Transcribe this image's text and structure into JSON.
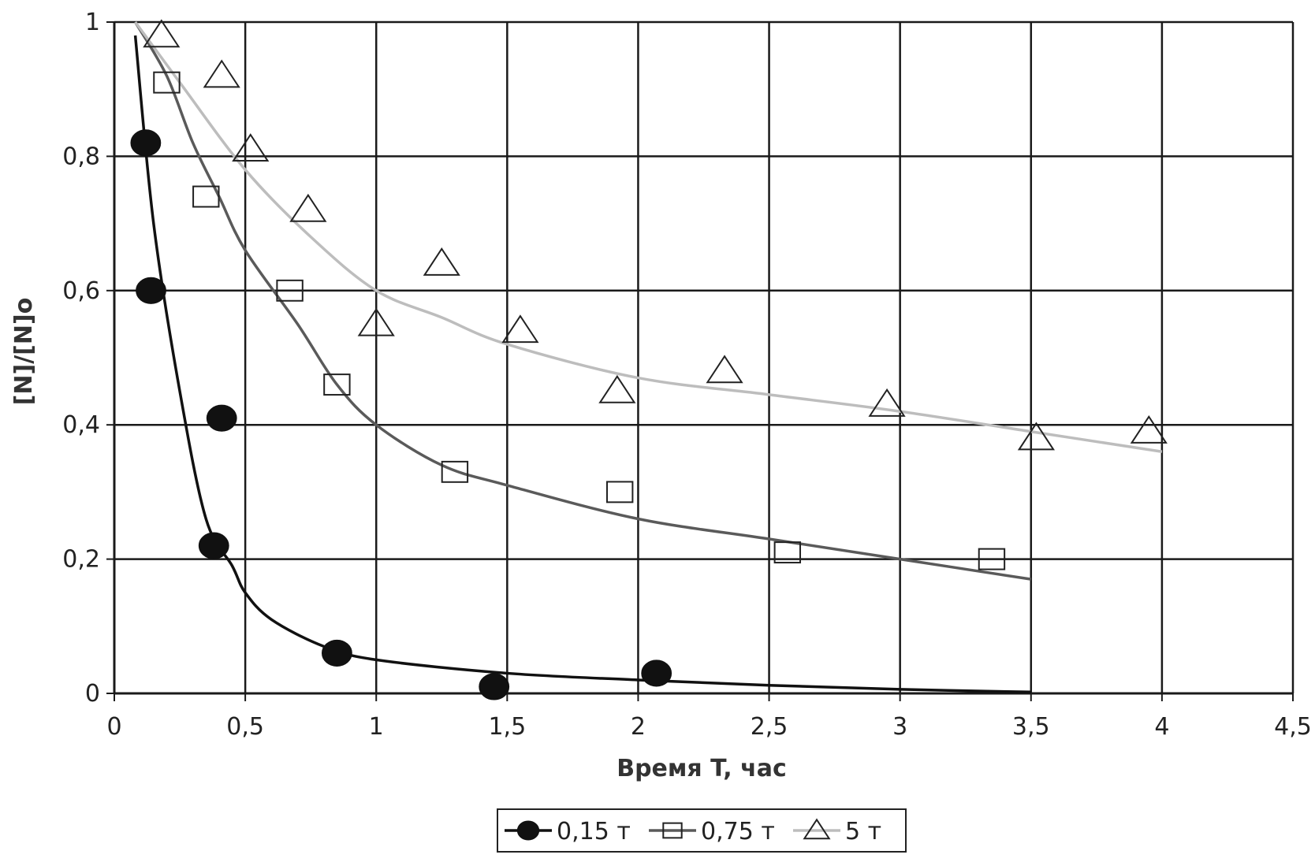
{
  "chart_data": {
    "type": "scatter",
    "xlabel": "Время T, час",
    "ylabel": "[N]/[N]o",
    "xlim": [
      0,
      4.5
    ],
    "ylim": [
      0,
      1
    ],
    "x_ticks": [
      "0",
      "0,5",
      "1",
      "1,5",
      "2",
      "2,5",
      "3",
      "3,5",
      "4",
      "4,5"
    ],
    "y_ticks": [
      "0",
      "0,2",
      "0,4",
      "0,6",
      "0,8",
      "1"
    ],
    "grid": true,
    "legend_position": "bottom",
    "series": [
      {
        "name": "0,15 т",
        "marker": "filled-circle",
        "color": "#111111",
        "points": [
          [
            0.12,
            0.82
          ],
          [
            0.14,
            0.6
          ],
          [
            0.41,
            0.41
          ],
          [
            0.38,
            0.22
          ],
          [
            0.85,
            0.06
          ],
          [
            1.45,
            0.01
          ],
          [
            2.07,
            0.03
          ]
        ],
        "trend": [
          [
            0.08,
            0.98
          ],
          [
            0.15,
            0.7
          ],
          [
            0.25,
            0.45
          ],
          [
            0.35,
            0.26
          ],
          [
            0.45,
            0.19
          ],
          [
            0.5,
            0.15
          ],
          [
            0.6,
            0.11
          ],
          [
            0.8,
            0.07
          ],
          [
            1.0,
            0.05
          ],
          [
            1.5,
            0.03
          ],
          [
            2.0,
            0.02
          ],
          [
            2.5,
            0.012
          ],
          [
            3.0,
            0.006
          ],
          [
            3.5,
            0.002
          ]
        ]
      },
      {
        "name": "0,75 т",
        "marker": "open-square",
        "color": "#555555",
        "points": [
          [
            0.2,
            0.91
          ],
          [
            0.35,
            0.74
          ],
          [
            0.67,
            0.6
          ],
          [
            0.85,
            0.46
          ],
          [
            1.3,
            0.33
          ],
          [
            1.93,
            0.3
          ],
          [
            2.57,
            0.21
          ],
          [
            3.35,
            0.2
          ]
        ],
        "trend": [
          [
            0.08,
            1.0
          ],
          [
            0.2,
            0.92
          ],
          [
            0.3,
            0.82
          ],
          [
            0.4,
            0.74
          ],
          [
            0.5,
            0.66
          ],
          [
            0.7,
            0.55
          ],
          [
            0.85,
            0.46
          ],
          [
            1.0,
            0.4
          ],
          [
            1.25,
            0.34
          ],
          [
            1.5,
            0.31
          ],
          [
            2.0,
            0.26
          ],
          [
            2.5,
            0.23
          ],
          [
            3.0,
            0.2
          ],
          [
            3.5,
            0.17
          ]
        ]
      },
      {
        "name": "5 т",
        "marker": "open-triangle",
        "color": "#b0b0b0",
        "points": [
          [
            0.18,
            0.98
          ],
          [
            0.41,
            0.92
          ],
          [
            0.52,
            0.81
          ],
          [
            0.74,
            0.72
          ],
          [
            1.0,
            0.55
          ],
          [
            1.25,
            0.64
          ],
          [
            1.55,
            0.54
          ],
          [
            1.92,
            0.45
          ],
          [
            2.33,
            0.48
          ],
          [
            2.95,
            0.43
          ],
          [
            3.52,
            0.38
          ],
          [
            3.95,
            0.39
          ]
        ],
        "trend": [
          [
            0.08,
            1.0
          ],
          [
            0.25,
            0.91
          ],
          [
            0.5,
            0.78
          ],
          [
            0.75,
            0.68
          ],
          [
            1.0,
            0.6
          ],
          [
            1.25,
            0.56
          ],
          [
            1.5,
            0.52
          ],
          [
            2.0,
            0.47
          ],
          [
            2.5,
            0.445
          ],
          [
            3.0,
            0.42
          ],
          [
            3.5,
            0.39
          ],
          [
            4.0,
            0.36
          ]
        ]
      }
    ]
  }
}
